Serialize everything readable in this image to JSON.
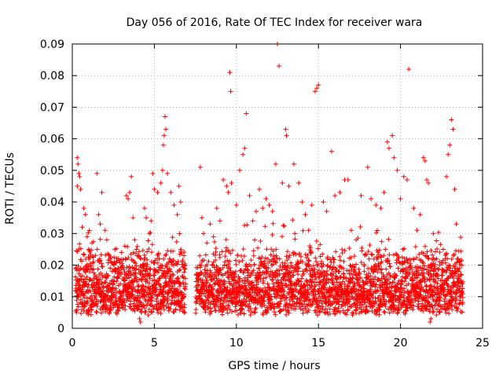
{
  "chart_data": {
    "type": "scatter",
    "title": "Day 056 of 2016, Rate Of TEC Index for receiver wara",
    "xlabel": "GPS time / hours",
    "ylabel": "ROTI / TECUs",
    "xlim": [
      0,
      25
    ],
    "ylim": [
      0,
      0.09
    ],
    "xticks": [
      0,
      5,
      10,
      15,
      20,
      25
    ],
    "yticks": [
      0,
      0.01,
      0.02,
      0.03,
      0.04,
      0.05,
      0.06,
      0.07,
      0.08,
      0.09
    ],
    "xtick_labels": [
      "0",
      "5",
      "10",
      "15",
      "20",
      "25"
    ],
    "ytick_labels": [
      "0",
      "0.01",
      "0.02",
      "0.03",
      "0.04",
      "0.05",
      "0.06",
      "0.07",
      "0.08",
      "0.09"
    ],
    "grid": true,
    "marker": "+",
    "color": "#ff0000",
    "series": [
      {
        "name": "ROTI",
        "points": [
          [
            0.3,
            0.054
          ],
          [
            0.35,
            0.052
          ],
          [
            0.4,
            0.049
          ],
          [
            0.45,
            0.048
          ],
          [
            0.5,
            0.044
          ],
          [
            0.3,
            0.045
          ],
          [
            0.6,
            0.032
          ],
          [
            0.7,
            0.038
          ],
          [
            0.8,
            0.036
          ],
          [
            0.9,
            0.029
          ],
          [
            1.0,
            0.025
          ],
          [
            1.2,
            0.027
          ],
          [
            1.5,
            0.049
          ],
          [
            1.6,
            0.036
          ],
          [
            1.7,
            0.033
          ],
          [
            1.8,
            0.043
          ],
          [
            2.0,
            0.031
          ],
          [
            2.1,
            0.028
          ],
          [
            2.3,
            0.022
          ],
          [
            2.5,
            0.02
          ],
          [
            2.8,
            0.019
          ],
          [
            3.0,
            0.024
          ],
          [
            3.2,
            0.026
          ],
          [
            3.3,
            0.042
          ],
          [
            3.4,
            0.041
          ],
          [
            3.5,
            0.043
          ],
          [
            3.6,
            0.048
          ],
          [
            3.7,
            0.035
          ],
          [
            3.8,
            0.028
          ],
          [
            3.9,
            0.025
          ],
          [
            4.0,
            0.012
          ],
          [
            4.1,
            0.003
          ],
          [
            4.15,
            0.002
          ],
          [
            4.2,
            0.005
          ],
          [
            4.3,
            0.02
          ],
          [
            4.4,
            0.038
          ],
          [
            4.5,
            0.035
          ],
          [
            4.7,
            0.03
          ],
          [
            4.8,
            0.034
          ],
          [
            4.9,
            0.049
          ],
          [
            5.0,
            0.044
          ],
          [
            5.2,
            0.043
          ],
          [
            5.4,
            0.046
          ],
          [
            5.5,
            0.05
          ],
          [
            5.55,
            0.058
          ],
          [
            5.6,
            0.061
          ],
          [
            5.65,
            0.067
          ],
          [
            5.7,
            0.063
          ],
          [
            5.8,
            0.049
          ],
          [
            6.0,
            0.043
          ],
          [
            6.2,
            0.039
          ],
          [
            6.4,
            0.036
          ],
          [
            6.5,
            0.045
          ],
          [
            6.6,
            0.04
          ],
          [
            6.8,
            0.023
          ],
          [
            7.8,
            0.051
          ],
          [
            7.9,
            0.035
          ],
          [
            8.0,
            0.03
          ],
          [
            8.2,
            0.027
          ],
          [
            8.4,
            0.033
          ],
          [
            8.6,
            0.029
          ],
          [
            8.8,
            0.038
          ],
          [
            9.0,
            0.034
          ],
          [
            9.2,
            0.047
          ],
          [
            9.4,
            0.045
          ],
          [
            9.5,
            0.043
          ],
          [
            9.6,
            0.081
          ],
          [
            9.65,
            0.075
          ],
          [
            9.7,
            0.046
          ],
          [
            10.0,
            0.039
          ],
          [
            10.2,
            0.05
          ],
          [
            10.4,
            0.055
          ],
          [
            10.5,
            0.057
          ],
          [
            10.6,
            0.068
          ],
          [
            10.8,
            0.042
          ],
          [
            11.0,
            0.034
          ],
          [
            11.2,
            0.037
          ],
          [
            11.4,
            0.044
          ],
          [
            11.6,
            0.038
          ],
          [
            11.8,
            0.041
          ],
          [
            12.0,
            0.039
          ],
          [
            12.2,
            0.037
          ],
          [
            12.4,
            0.052
          ],
          [
            12.5,
            0.09
          ],
          [
            12.6,
            0.083
          ],
          [
            12.8,
            0.046
          ],
          [
            13.0,
            0.063
          ],
          [
            13.05,
            0.061
          ],
          [
            13.2,
            0.045
          ],
          [
            13.5,
            0.052
          ],
          [
            13.8,
            0.046
          ],
          [
            14.0,
            0.04
          ],
          [
            14.2,
            0.036
          ],
          [
            14.4,
            0.031
          ],
          [
            14.6,
            0.039
          ],
          [
            14.8,
            0.075
          ],
          [
            14.9,
            0.076
          ],
          [
            15.0,
            0.077
          ],
          [
            15.3,
            0.04
          ],
          [
            15.5,
            0.037
          ],
          [
            15.8,
            0.056
          ],
          [
            16.0,
            0.042
          ],
          [
            16.3,
            0.043
          ],
          [
            16.6,
            0.047
          ],
          [
            16.8,
            0.047
          ],
          [
            17.0,
            0.031
          ],
          [
            17.3,
            0.028
          ],
          [
            17.6,
            0.042
          ],
          [
            18.0,
            0.051
          ],
          [
            18.2,
            0.041
          ],
          [
            18.5,
            0.039
          ],
          [
            18.8,
            0.038
          ],
          [
            19.0,
            0.043
          ],
          [
            19.2,
            0.059
          ],
          [
            19.3,
            0.057
          ],
          [
            19.5,
            0.061
          ],
          [
            19.6,
            0.054
          ],
          [
            19.8,
            0.05
          ],
          [
            20.0,
            0.041
          ],
          [
            20.2,
            0.048
          ],
          [
            20.4,
            0.047
          ],
          [
            20.5,
            0.082
          ],
          [
            20.8,
            0.038
          ],
          [
            21.0,
            0.031
          ],
          [
            21.2,
            0.036
          ],
          [
            21.4,
            0.054
          ],
          [
            21.5,
            0.053
          ],
          [
            21.6,
            0.047
          ],
          [
            21.7,
            0.046
          ],
          [
            21.8,
            0.002
          ],
          [
            21.85,
            0.003
          ],
          [
            22.0,
            0.03
          ],
          [
            22.2,
            0.022
          ],
          [
            22.4,
            0.02
          ],
          [
            22.6,
            0.025
          ],
          [
            22.8,
            0.048
          ],
          [
            22.9,
            0.055
          ],
          [
            23.0,
            0.058
          ],
          [
            23.1,
            0.066
          ],
          [
            23.2,
            0.063
          ],
          [
            23.3,
            0.044
          ],
          [
            23.4,
            0.033
          ],
          [
            23.5,
            0.022
          ],
          [
            23.6,
            0.019
          ],
          [
            23.7,
            0.017
          ]
        ]
      }
    ]
  }
}
